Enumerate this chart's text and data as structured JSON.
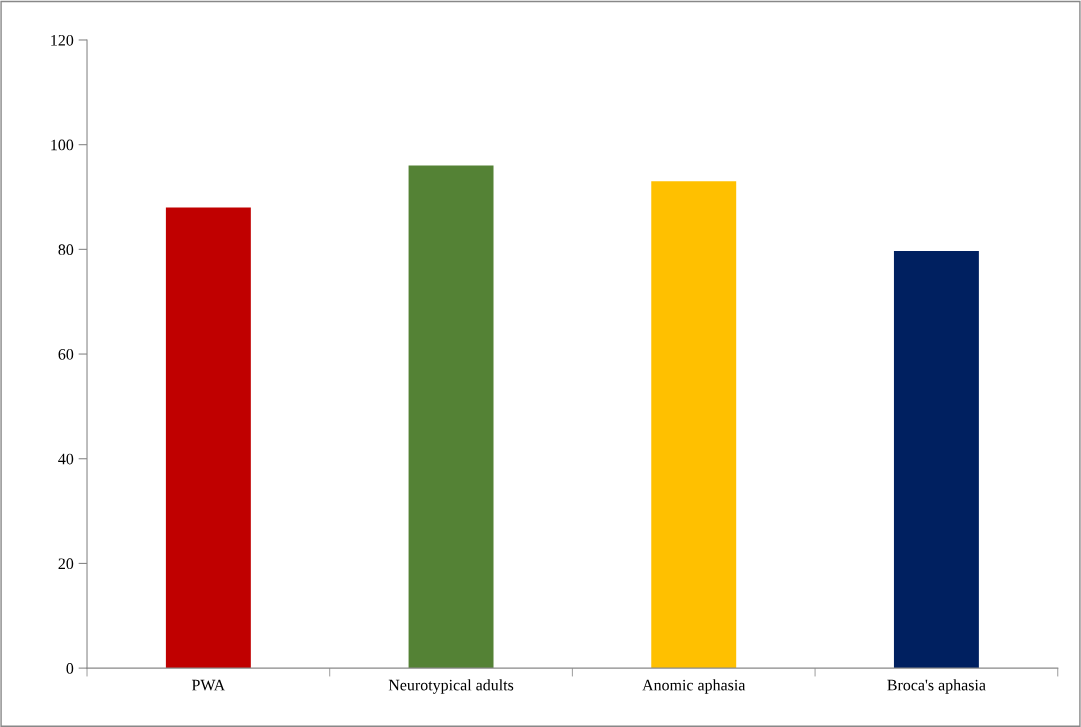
{
  "chart_data": {
    "type": "bar",
    "categories": [
      "PWA",
      "Neurotypical adults",
      "Anomic aphasia",
      "Broca's aphasia"
    ],
    "values": [
      88,
      96,
      93,
      79.7
    ],
    "colors": [
      "#c00000",
      "#548235",
      "#ffc000",
      "#002060"
    ],
    "ylim": [
      0,
      120
    ],
    "yticks": [
      0,
      20,
      40,
      60,
      80,
      100,
      120
    ],
    "grid": false,
    "legend": false
  }
}
